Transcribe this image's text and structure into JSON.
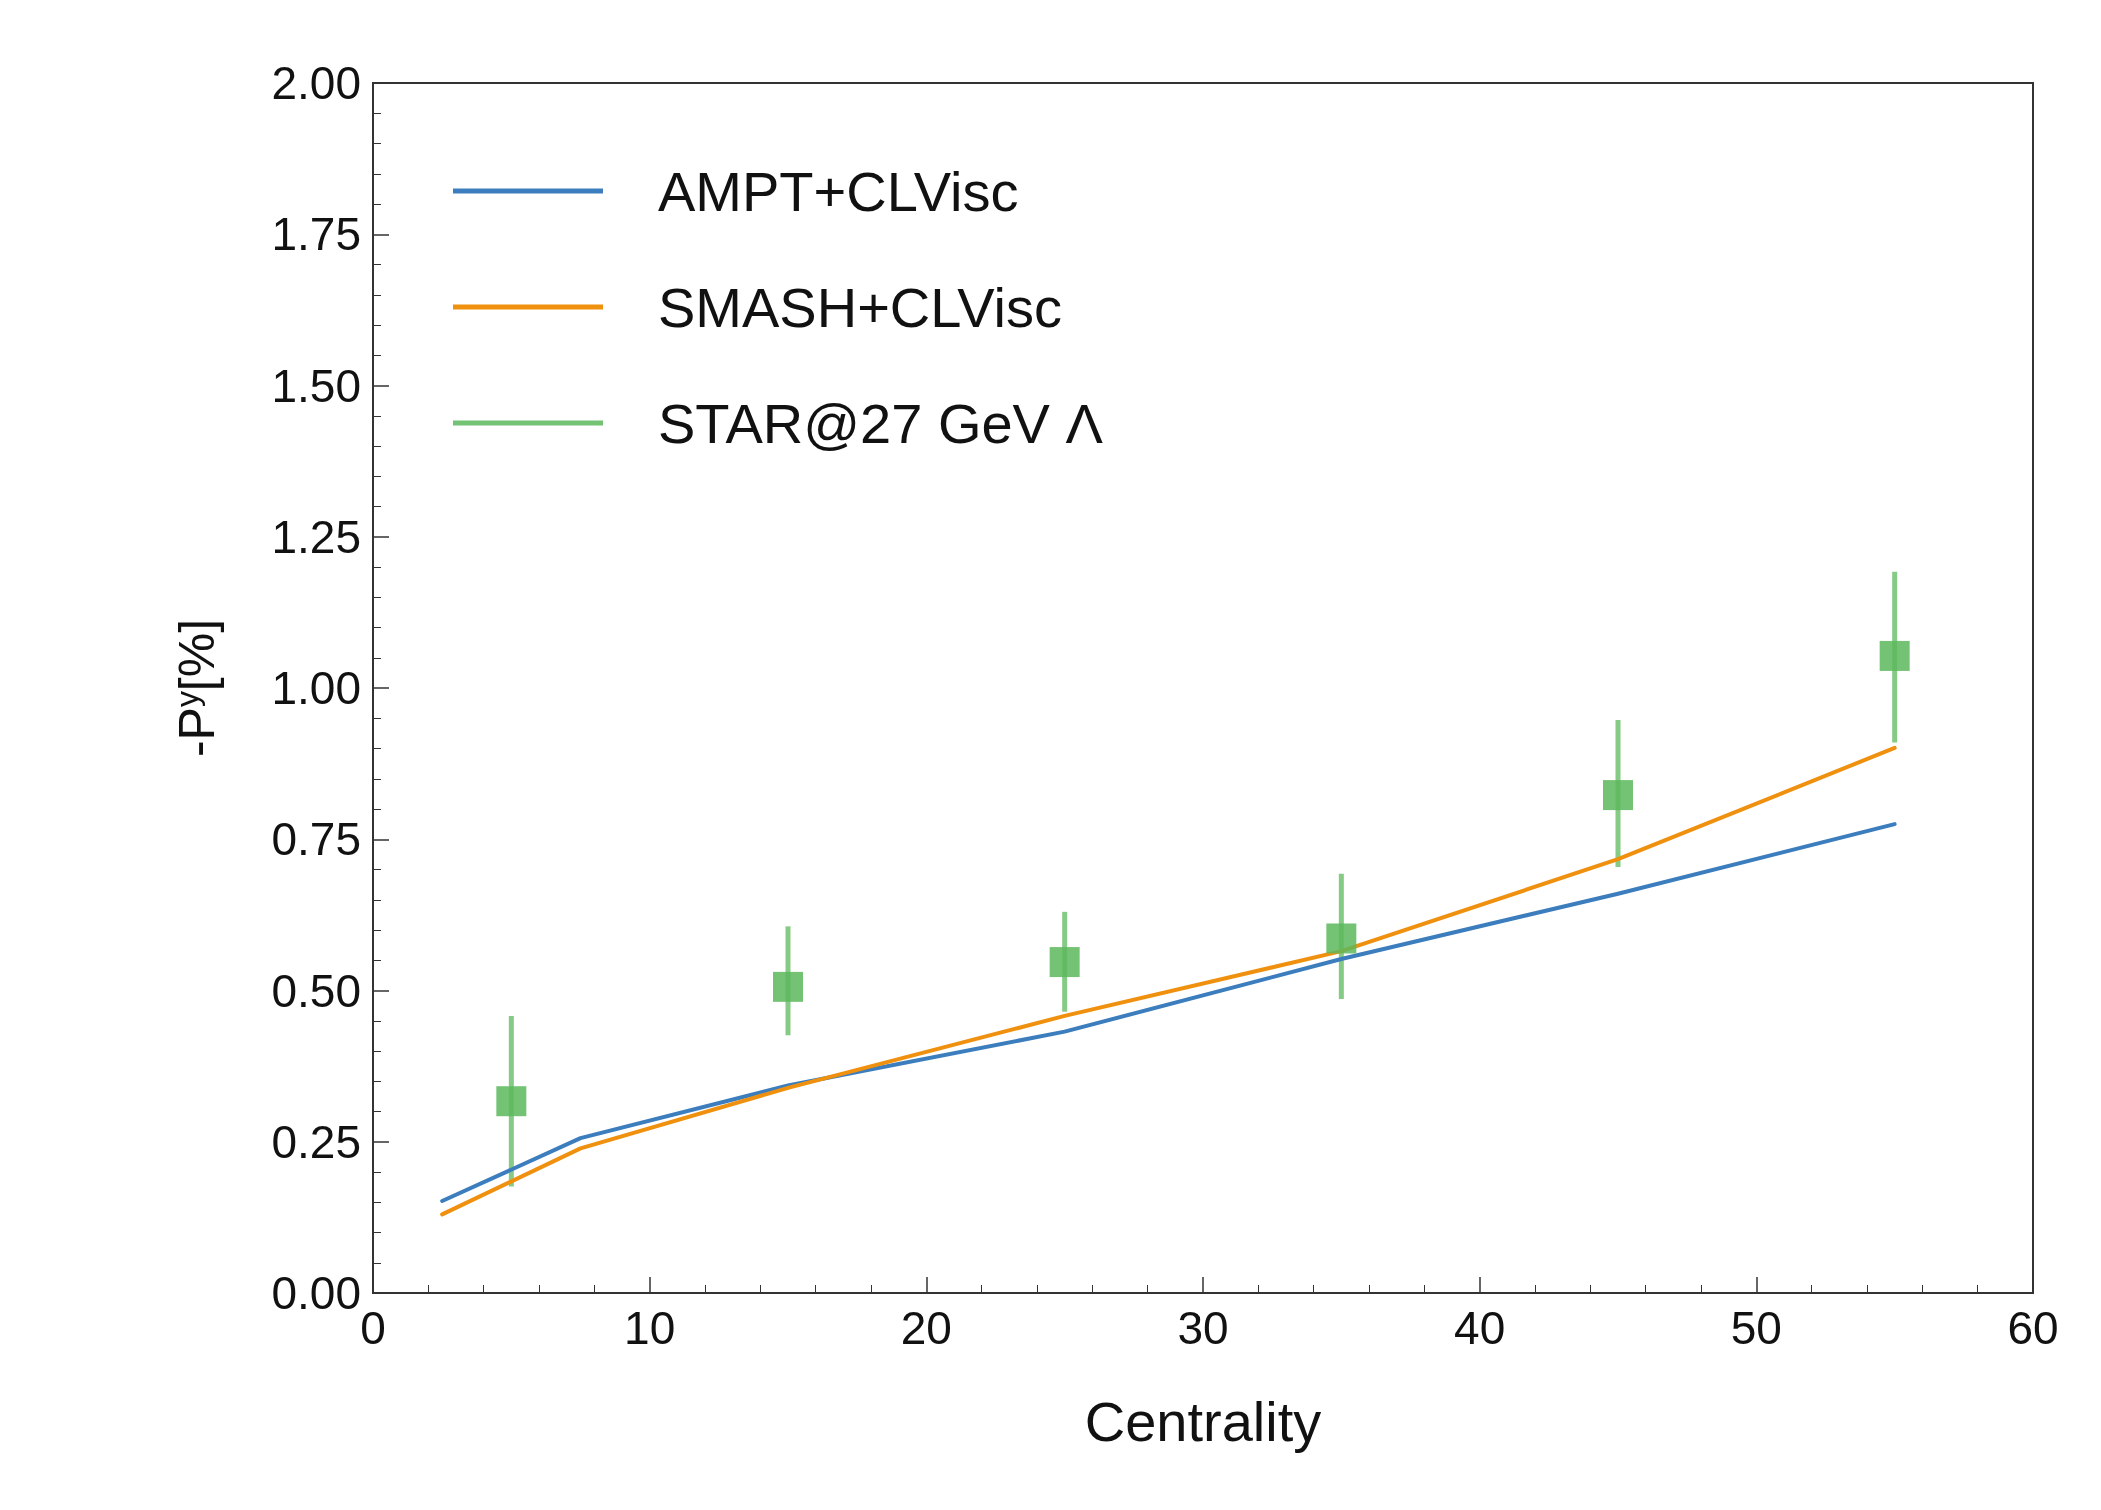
{
  "chart_data": {
    "type": "line",
    "xlabel": "Centrality",
    "ylabel": "-P$^{y}$[%]",
    "xlim": [
      0,
      60
    ],
    "xticks": [
      0,
      10,
      20,
      30,
      40,
      50,
      60
    ],
    "ylim": [
      0,
      2
    ],
    "yticks": [
      {
        "value": 0,
        "label": "0.00"
      },
      {
        "value": 0.25,
        "label": "0.25"
      },
      {
        "value": 0.5,
        "label": "0.50"
      },
      {
        "value": 0.75,
        "label": "0.75"
      },
      {
        "value": 1,
        "label": "1.00"
      },
      {
        "value": 1.25,
        "label": "1.25"
      },
      {
        "value": 1.5,
        "label": "1.50"
      },
      {
        "value": 1.75,
        "label": "1.75"
      },
      {
        "value": 2,
        "label": "2.00"
      }
    ],
    "grid": false,
    "legend": "top left",
    "series": [
      {
        "name": "AMPT+CLVisc",
        "color": "#3b7dbd",
        "marker": "none",
        "x": [
          2.5,
          7.5,
          15,
          25,
          35,
          45,
          55
        ],
        "values": [
          0.152,
          0.256,
          0.343,
          0.432,
          0.552,
          0.66,
          0.775
        ]
      },
      {
        "name": "SMASH+CLVisc",
        "color": "#f0900f",
        "marker": "none",
        "x": [
          2.5,
          7.5,
          15,
          25,
          35,
          45,
          55
        ],
        "values": [
          0.13,
          0.239,
          0.339,
          0.458,
          0.565,
          0.717,
          0.901
        ]
      },
      {
        "name": "STAR@27 GeV Λ",
        "type": "scatter",
        "color": "#5cb85c",
        "marker": "square",
        "x": [
          5,
          15,
          25,
          35,
          45,
          55
        ],
        "values": [
          0.317,
          0.506,
          0.547,
          0.586,
          0.823,
          1.053
        ],
        "errors": [
          [
            0.176,
            0.458
          ],
          [
            0.426,
            0.606
          ],
          [
            0.465,
            0.63
          ],
          [
            0.486,
            0.693
          ],
          [
            0.704,
            0.947
          ],
          [
            0.91,
            1.192
          ]
        ]
      }
    ]
  }
}
